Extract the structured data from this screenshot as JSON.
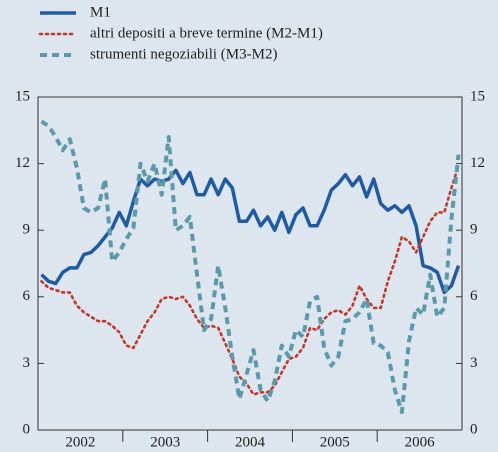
{
  "chart_data": {
    "type": "line",
    "categories": [
      null,
      null,
      null,
      null,
      null,
      null,
      "2002",
      null,
      null,
      null,
      null,
      null,
      null,
      null,
      null,
      null,
      null,
      null,
      "2003",
      null,
      null,
      null,
      null,
      null,
      null,
      null,
      null,
      null,
      null,
      null,
      "2004",
      null,
      null,
      null,
      null,
      null,
      null,
      null,
      null,
      null,
      null,
      null,
      "2005",
      null,
      null,
      null,
      null,
      null,
      null,
      null,
      null,
      null,
      null,
      null,
      "2006",
      null,
      null,
      null,
      null,
      null
    ],
    "series": [
      {
        "name": "M1",
        "color": "#1f5ba3",
        "style": "solid",
        "values": [
          7.0,
          6.7,
          6.6,
          7.1,
          7.3,
          7.3,
          7.9,
          8.0,
          8.3,
          8.7,
          9.1,
          9.8,
          9.2,
          10.3,
          11.3,
          11.0,
          11.3,
          11.2,
          11.3,
          11.7,
          11.1,
          11.6,
          10.6,
          10.6,
          11.3,
          10.6,
          11.3,
          10.9,
          9.4,
          9.4,
          9.9,
          9.2,
          9.6,
          9.0,
          9.8,
          8.9,
          9.7,
          10.0,
          9.2,
          9.2,
          9.9,
          10.8,
          11.1,
          11.5,
          11.0,
          11.4,
          10.5,
          11.3,
          10.2,
          9.9,
          10.1,
          9.8,
          10.1,
          9.2,
          7.4,
          7.3,
          7.1,
          6.2,
          6.5,
          7.4
        ]
      },
      {
        "name": "altri depositi a breve termine (M2-M1)",
        "color": "#c0392b",
        "style": "dotted",
        "values": [
          6.7,
          6.4,
          6.3,
          6.2,
          6.2,
          5.6,
          5.3,
          5.1,
          4.9,
          4.9,
          4.7,
          4.4,
          3.8,
          3.7,
          4.3,
          4.9,
          5.3,
          5.9,
          6.0,
          5.9,
          6.0,
          5.6,
          5.0,
          4.6,
          4.7,
          4.6,
          3.9,
          3.2,
          2.4,
          2.1,
          1.6,
          1.7,
          1.7,
          2.0,
          2.6,
          3.2,
          3.3,
          3.7,
          4.6,
          4.5,
          5.0,
          5.3,
          5.4,
          5.2,
          5.6,
          6.5,
          5.9,
          5.5,
          5.5,
          6.7,
          7.6,
          8.7,
          8.5,
          8.0,
          8.7,
          9.4,
          9.8,
          9.8,
          10.9,
          11.9
        ]
      },
      {
        "name": "strumenti negoziabili (M3-M2)",
        "color": "#5b9aaa",
        "style": "dashed",
        "values": [
          13.9,
          13.7,
          13.2,
          12.6,
          13.1,
          11.8,
          10.0,
          9.8,
          10.0,
          11.3,
          7.6,
          8.0,
          8.6,
          9.1,
          12.0,
          11.2,
          12.0,
          10.6,
          13.2,
          9.0,
          9.2,
          9.6,
          7.0,
          4.5,
          5.0,
          7.4,
          5.5,
          3.3,
          1.4,
          2.5,
          3.6,
          1.8,
          1.3,
          2.2,
          3.8,
          3.3,
          4.5,
          4.2,
          5.8,
          6.0,
          3.7,
          2.9,
          3.3,
          4.9,
          5.0,
          5.3,
          5.9,
          3.9,
          3.8,
          3.5,
          1.8,
          0.8,
          4.0,
          5.5,
          5.2,
          7.0,
          5.1,
          5.5,
          9.5,
          12.4
        ]
      }
    ],
    "ylim": [
      0,
      15
    ],
    "yticks": [
      0,
      3,
      6,
      9,
      12,
      15
    ],
    "y2lim": [
      0,
      15
    ],
    "y2ticks": [
      0,
      3,
      6,
      9,
      12,
      15
    ],
    "grid": false,
    "legend": "top-left"
  }
}
